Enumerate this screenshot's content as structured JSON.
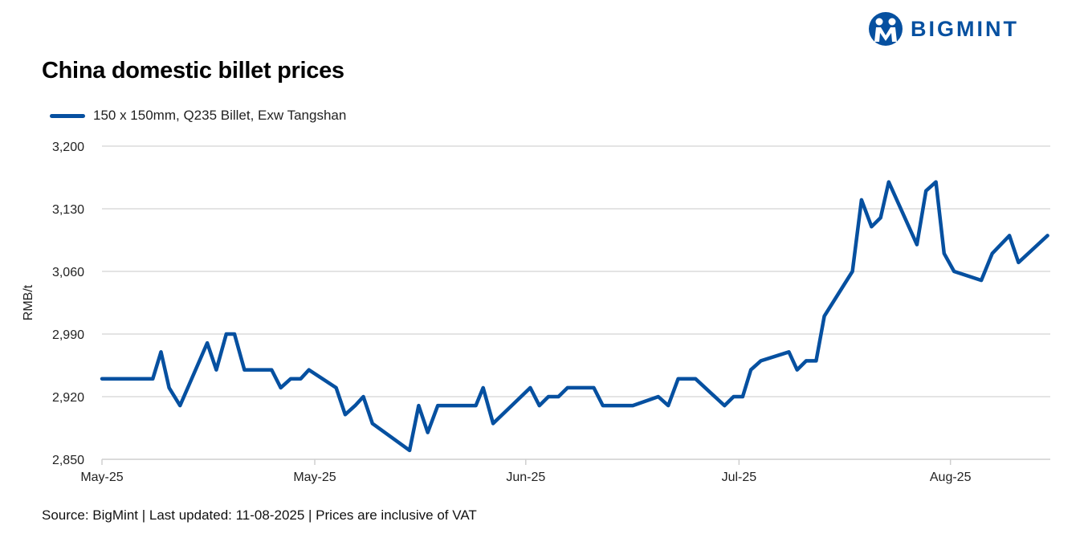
{
  "logo": {
    "text": "BIGMINT",
    "color": "#0650a0"
  },
  "source": "Source: BigMint | Last updated: 11-08-2025 | Prices are inclusive of VAT",
  "chart_data": {
    "type": "line",
    "title": "China domestic billet prices",
    "xlabel": "",
    "ylabel": "RMB/t",
    "ylim": [
      2850,
      3200
    ],
    "yticks": [
      2850,
      2920,
      2990,
      3060,
      3130,
      3200
    ],
    "ytick_labels": [
      "2,850",
      "2,920",
      "2,990",
      "3,060",
      "3,130",
      "3,200"
    ],
    "xlim": [
      0,
      104.5
    ],
    "xticks": [
      0,
      23.45,
      46.7,
      70.2,
      93.5
    ],
    "xtick_labels": [
      "May-25",
      "May-25",
      "Jun-25",
      "Jul-25",
      "Aug-25"
    ],
    "grid": true,
    "legend_position": "top-left",
    "series": [
      {
        "name": "150 x 150mm, Q235 Billet, Exw Tangshan",
        "color": "#0650a0",
        "x": [
          0,
          5.6,
          6.5,
          7.4,
          8.6,
          11.6,
          12.6,
          13.7,
          14.6,
          15.7,
          18.7,
          19.7,
          20.8,
          21.9,
          22.8,
          25.8,
          26.8,
          27.9,
          28.8,
          29.8,
          33.9,
          34.9,
          35.9,
          37.0,
          41.2,
          42.0,
          43.1,
          47.2,
          48.2,
          49.2,
          50.3,
          51.3,
          54.2,
          55.2,
          58.5,
          61.3,
          62.4,
          63.5,
          65.4,
          68.6,
          69.6,
          70.6,
          71.5,
          72.6,
          75.7,
          76.6,
          77.6,
          78.7,
          79.6,
          82.7,
          83.7,
          84.8,
          85.8,
          86.7,
          89.8,
          90.8,
          91.9,
          92.8,
          93.9,
          96.9,
          98.1,
          100.0,
          101.0,
          104.2
        ],
        "values": [
          2940,
          2940,
          2970,
          2930,
          2910,
          2980,
          2950,
          2990,
          2990,
          2950,
          2950,
          2930,
          2940,
          2940,
          2950,
          2930,
          2900,
          2910,
          2920,
          2890,
          2860,
          2910,
          2880,
          2910,
          2910,
          2930,
          2890,
          2930,
          2910,
          2920,
          2920,
          2930,
          2930,
          2910,
          2910,
          2920,
          2910,
          2940,
          2940,
          2910,
          2920,
          2920,
          2950,
          2960,
          2970,
          2950,
          2960,
          2960,
          3010,
          3060,
          3140,
          3110,
          3120,
          3160,
          3090,
          3150,
          3160,
          3080,
          3060,
          3050,
          3080,
          3100,
          3070,
          3100
        ]
      }
    ]
  }
}
